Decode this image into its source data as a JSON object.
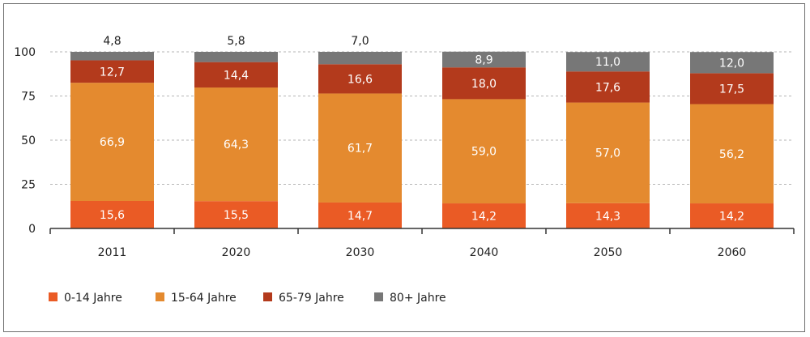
{
  "chart_data": {
    "type": "bar",
    "stacked": true,
    "categories": [
      "2011",
      "2020",
      "2030",
      "2040",
      "2050",
      "2060"
    ],
    "series": [
      {
        "name": "0-14 Jahre",
        "color": "#ea5b25",
        "values": [
          15.6,
          15.5,
          14.7,
          14.2,
          14.3,
          14.2
        ],
        "labels": [
          "15,6",
          "15,5",
          "14,7",
          "14,2",
          "14,3",
          "14,2"
        ]
      },
      {
        "name": "15-64 Jahre",
        "color": "#e48a2f",
        "values": [
          66.9,
          64.3,
          61.7,
          59.0,
          57.0,
          56.2
        ],
        "labels": [
          "66,9",
          "64,3",
          "61,7",
          "59,0",
          "57,0",
          "56,2"
        ]
      },
      {
        "name": "65-79 Jahre",
        "color": "#b33a1c",
        "values": [
          12.7,
          14.4,
          16.6,
          18.0,
          17.6,
          17.5
        ],
        "labels": [
          "12,7",
          "14,4",
          "16,6",
          "18,0",
          "17,6",
          "17,5"
        ]
      },
      {
        "name": "80+ Jahre",
        "color": "#777777",
        "values": [
          4.8,
          5.8,
          7.0,
          8.9,
          11.0,
          12.0
        ],
        "labels": [
          "4,8",
          "5,8",
          "7,0",
          "8,9",
          "11,0",
          "12,0"
        ]
      }
    ],
    "ylim": [
      0,
      100
    ],
    "yticks": [
      0,
      25,
      50,
      75,
      100
    ],
    "title": "",
    "xlabel": "",
    "ylabel": "",
    "grid": "horizontal dashed",
    "legend_position": "bottom-left"
  }
}
